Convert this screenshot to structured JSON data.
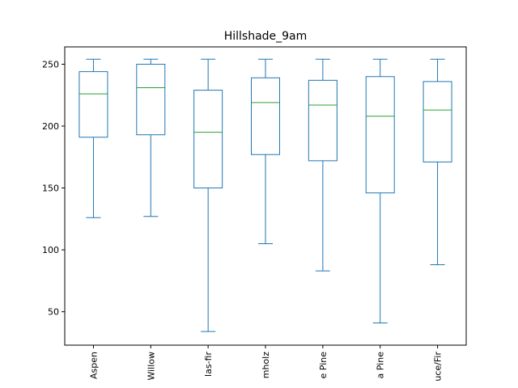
{
  "chart_data": {
    "type": "boxplot",
    "title": "Hillshade_9am",
    "xlabel": "",
    "ylabel": "",
    "ylim": [
      23,
      264
    ],
    "yticks": [
      50,
      100,
      150,
      200,
      250
    ],
    "categories": [
      "Aspen",
      "Willow",
      "las-fir",
      "mholz",
      "e Pine",
      "a Pine",
      "uce/Fir"
    ],
    "boxes": [
      {
        "whisker_low": 126,
        "q1": 191,
        "median": 226,
        "q3": 244,
        "whisker_high": 254
      },
      {
        "whisker_low": 127,
        "q1": 193,
        "median": 231,
        "q3": 250,
        "whisker_high": 254
      },
      {
        "whisker_low": 34,
        "q1": 150,
        "median": 195,
        "q3": 229,
        "whisker_high": 254
      },
      {
        "whisker_low": 105,
        "q1": 177,
        "median": 219,
        "q3": 239,
        "whisker_high": 254
      },
      {
        "whisker_low": 83,
        "q1": 172,
        "median": 217,
        "q3": 237,
        "whisker_high": 254
      },
      {
        "whisker_low": 41,
        "q1": 146,
        "median": 208,
        "q3": 240,
        "whisker_high": 254
      },
      {
        "whisker_low": 88,
        "q1": 171,
        "median": 213,
        "q3": 236,
        "whisker_high": 254
      }
    ],
    "box_color": "#1f77b4",
    "median_color": "#2ca02c",
    "grid": false,
    "legend": "none"
  }
}
